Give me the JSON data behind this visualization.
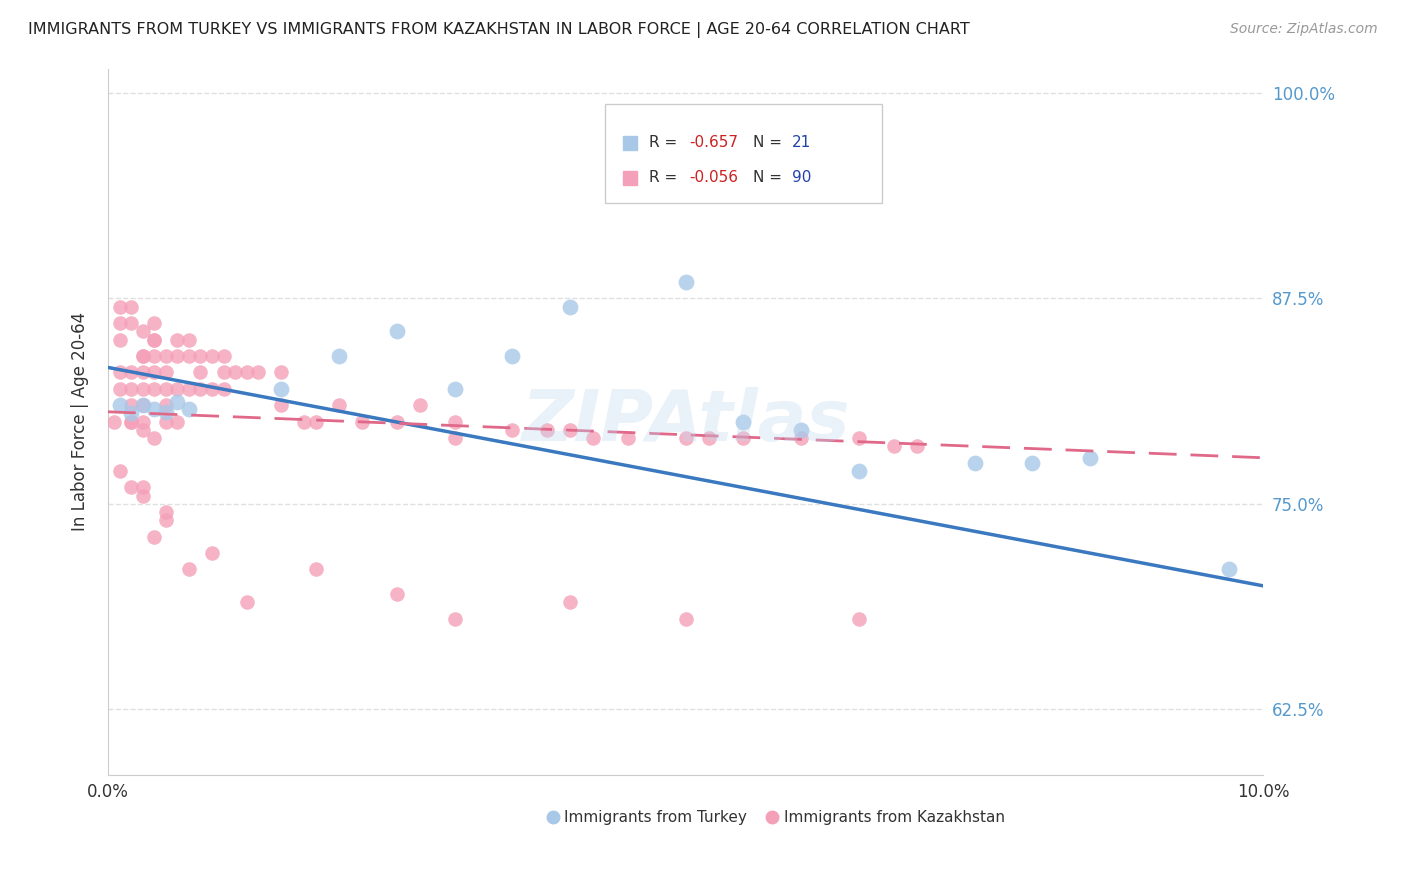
{
  "title": "IMMIGRANTS FROM TURKEY VS IMMIGRANTS FROM KAZAKHSTAN IN LABOR FORCE | AGE 20-64 CORRELATION CHART",
  "source": "Source: ZipAtlas.com",
  "ylabel": "In Labor Force | Age 20-64",
  "xlim": [
    0.0,
    0.1
  ],
  "ylim": [
    0.585,
    1.015
  ],
  "ytick_vals": [
    0.625,
    0.75,
    0.875,
    1.0
  ],
  "ytick_labels": [
    "62.5%",
    "75.0%",
    "87.5%",
    "100.0%"
  ],
  "turkey_color": "#a8c8e8",
  "kazakhstan_color": "#f4a0b8",
  "turkey_line_color": "#3a78c0",
  "kazakhstan_line_color": "#e06888",
  "turkey_R": -0.657,
  "turkey_N": 21,
  "kazakhstan_R": -0.056,
  "kazakhstan_N": 90,
  "turkey_x": [
    0.001,
    0.002,
    0.003,
    0.004,
    0.005,
    0.006,
    0.007,
    0.015,
    0.02,
    0.025,
    0.03,
    0.035,
    0.04,
    0.05,
    0.055,
    0.06,
    0.065,
    0.075,
    0.08,
    0.085,
    0.097
  ],
  "turkey_y": [
    0.81,
    0.805,
    0.81,
    0.808,
    0.806,
    0.812,
    0.808,
    0.82,
    0.84,
    0.855,
    0.82,
    0.84,
    0.87,
    0.885,
    0.8,
    0.795,
    0.77,
    0.775,
    0.775,
    0.778,
    0.71
  ],
  "kazakhstan_x": [
    0.0005,
    0.001,
    0.001,
    0.001,
    0.001,
    0.001,
    0.002,
    0.002,
    0.002,
    0.002,
    0.002,
    0.002,
    0.003,
    0.003,
    0.003,
    0.003,
    0.003,
    0.003,
    0.003,
    0.004,
    0.004,
    0.004,
    0.004,
    0.004,
    0.004,
    0.005,
    0.005,
    0.005,
    0.005,
    0.005,
    0.006,
    0.006,
    0.006,
    0.006,
    0.007,
    0.007,
    0.007,
    0.008,
    0.008,
    0.008,
    0.009,
    0.009,
    0.01,
    0.01,
    0.01,
    0.011,
    0.012,
    0.013,
    0.015,
    0.015,
    0.017,
    0.018,
    0.02,
    0.022,
    0.025,
    0.027,
    0.03,
    0.03,
    0.035,
    0.038,
    0.04,
    0.042,
    0.045,
    0.05,
    0.052,
    0.055,
    0.06,
    0.065,
    0.068,
    0.07
  ],
  "kazakhstan_y": [
    0.8,
    0.83,
    0.82,
    0.87,
    0.86,
    0.85,
    0.83,
    0.82,
    0.81,
    0.8,
    0.86,
    0.87,
    0.84,
    0.83,
    0.82,
    0.81,
    0.8,
    0.855,
    0.84,
    0.85,
    0.84,
    0.83,
    0.82,
    0.86,
    0.85,
    0.84,
    0.83,
    0.82,
    0.81,
    0.8,
    0.85,
    0.84,
    0.82,
    0.8,
    0.85,
    0.84,
    0.82,
    0.84,
    0.83,
    0.82,
    0.84,
    0.82,
    0.84,
    0.83,
    0.82,
    0.83,
    0.83,
    0.83,
    0.83,
    0.81,
    0.8,
    0.8,
    0.81,
    0.8,
    0.8,
    0.81,
    0.8,
    0.79,
    0.795,
    0.795,
    0.795,
    0.79,
    0.79,
    0.79,
    0.79,
    0.79,
    0.79,
    0.79,
    0.785,
    0.785
  ],
  "kazakhstan_low_x": [
    0.001,
    0.002,
    0.003,
    0.003,
    0.004,
    0.005,
    0.005,
    0.007,
    0.009,
    0.012,
    0.018,
    0.025,
    0.03,
    0.04,
    0.05,
    0.065,
    0.002,
    0.003,
    0.004
  ],
  "kazakhstan_low_y": [
    0.77,
    0.76,
    0.76,
    0.755,
    0.73,
    0.745,
    0.74,
    0.71,
    0.72,
    0.69,
    0.71,
    0.695,
    0.68,
    0.69,
    0.68,
    0.68,
    0.8,
    0.795,
    0.79
  ],
  "turkey_line_x": [
    0.0,
    0.1
  ],
  "turkey_line_y": [
    0.833,
    0.7
  ],
  "kazakhstan_line_x": [
    0.0,
    0.1
  ],
  "kazakhstan_line_y": [
    0.806,
    0.778
  ],
  "watermark": "ZIPAtlas",
  "background_color": "#ffffff",
  "grid_color": "#e0e0e0"
}
